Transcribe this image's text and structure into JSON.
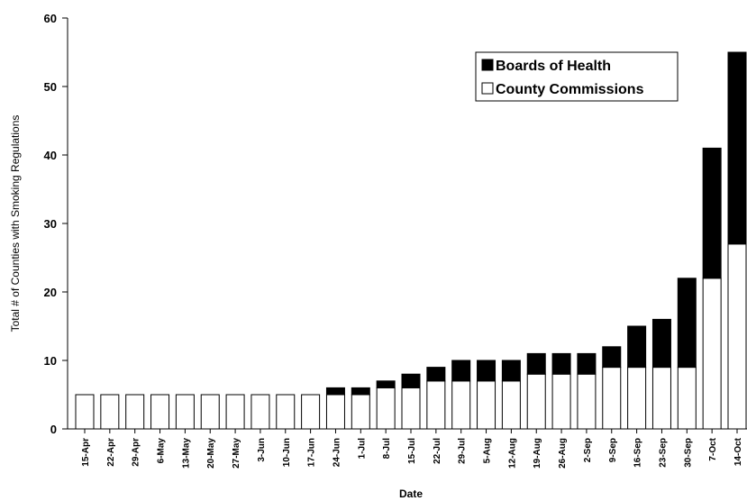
{
  "chart_data": {
    "type": "stacked-bar",
    "x_label": "Date",
    "y_label": "Total # of Counties with Smoking Regulations",
    "categories": [
      "15-Apr",
      "22-Apr",
      "29-Apr",
      "6-May",
      "13-May",
      "20-May",
      "27-May",
      "3-Jun",
      "10-Jun",
      "17-Jun",
      "24-Jun",
      "1-Jul",
      "8-Jul",
      "15-Jul",
      "22-Jul",
      "29-Jul",
      "5-Aug",
      "12-Aug",
      "19-Aug",
      "26-Aug",
      "2-Sep",
      "9-Sep",
      "16-Sep",
      "23-Sep",
      "30-Sep",
      "7-Oct",
      "14-Oct"
    ],
    "series": [
      {
        "name": "County Commissions",
        "color": "#ffffff",
        "values": [
          5,
          5,
          5,
          5,
          5,
          5,
          5,
          5,
          5,
          5,
          5,
          5,
          6,
          6,
          7,
          7,
          7,
          7,
          8,
          8,
          8,
          9,
          9,
          9,
          9,
          22,
          27
        ]
      },
      {
        "name": "Boards of Health",
        "color": "#000000",
        "values": [
          0,
          0,
          0,
          0,
          0,
          0,
          0,
          0,
          0,
          0,
          1,
          1,
          1,
          2,
          2,
          3,
          3,
          3,
          3,
          3,
          3,
          3,
          6,
          7,
          13,
          19,
          28
        ]
      }
    ],
    "legend_position": "upper right",
    "ylim": [
      0,
      60
    ],
    "yticks": [
      0,
      10,
      20,
      30,
      40,
      50,
      60
    ]
  }
}
